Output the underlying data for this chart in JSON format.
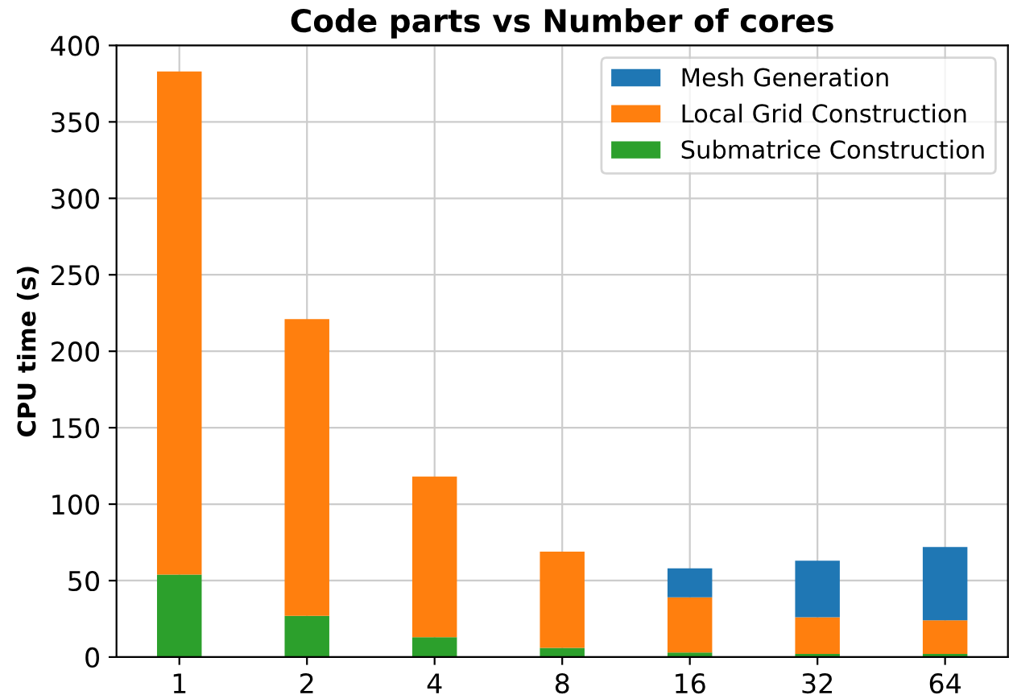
{
  "chart_data": {
    "type": "bar",
    "title": "Code parts vs Number of cores",
    "ylabel": "CPU time (s)",
    "categories": [
      "1",
      "2",
      "4",
      "8",
      "16",
      "32",
      "64"
    ],
    "stacked": true,
    "series": [
      {
        "name": "Submatrice Construction",
        "color": "#2ca02c",
        "values": [
          54,
          27,
          13,
          6,
          3,
          2,
          2
        ]
      },
      {
        "name": "Local Grid Construction",
        "color": "#ff7f0e",
        "values": [
          329,
          194,
          105,
          63,
          36,
          24,
          22
        ]
      },
      {
        "name": "Mesh Generation",
        "color": "#1f77b4",
        "values": [
          0,
          0,
          0,
          0,
          19,
          37,
          48
        ]
      }
    ],
    "ylim": [
      0,
      400
    ],
    "yticks": [
      0,
      50,
      100,
      150,
      200,
      250,
      300,
      350,
      400
    ],
    "grid": true,
    "legend": "top right"
  }
}
